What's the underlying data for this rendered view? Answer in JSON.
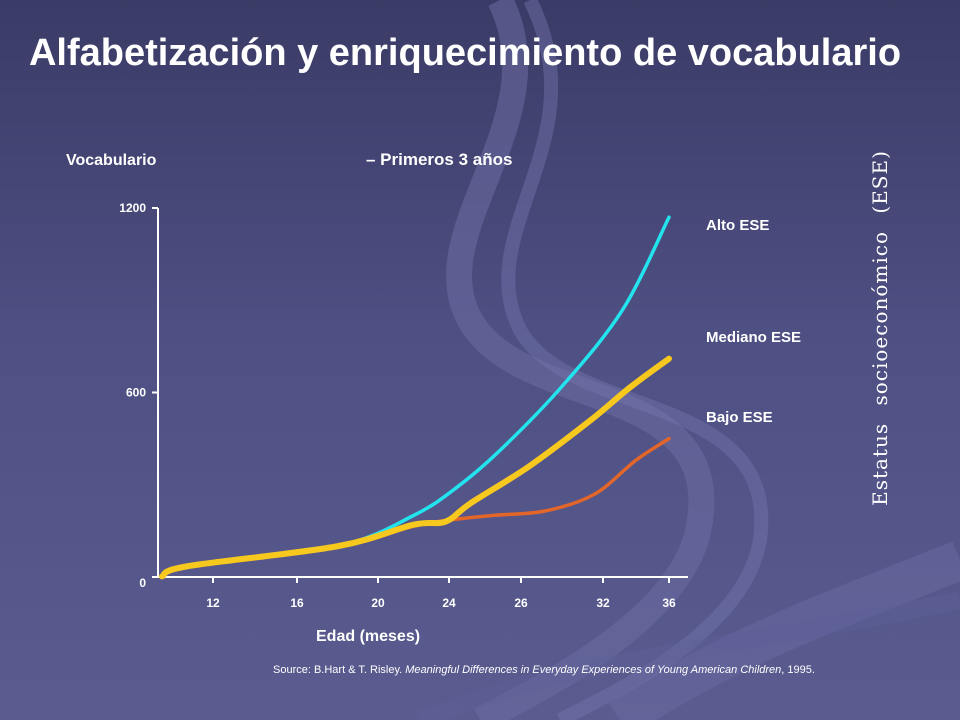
{
  "page": {
    "title": "Alfabetización y enriquecimiento de vocabulario",
    "side_label": "Estatus socioeconómico (ESE)",
    "source_prefix": "Source: B.Hart & T. Risley. ",
    "source_title": "Meaningful Differences in Everyday Experiences of Young American Children",
    "source_suffix": ", 1995."
  },
  "colors": {
    "background": "#4e4f82",
    "alto": "#22e3ee",
    "mediano": "#f7c81e",
    "bajo": "#e2662a"
  },
  "chart_data": {
    "type": "line",
    "title": "",
    "subtitle": "– Primeros  3  años",
    "xlabel": "Edad (meses)",
    "ylabel": "Vocabulario",
    "ylim": [
      0,
      1200
    ],
    "yticks": [
      {
        "value": 0,
        "label": "0"
      },
      {
        "value": 600,
        "label": "600"
      },
      {
        "value": 1200,
        "label": "1200"
      }
    ],
    "xticks": [
      "12",
      "16",
      "20",
      "24",
      "26",
      "32",
      "36"
    ],
    "grid": false,
    "legend": "right, labels beside line ends",
    "series": [
      {
        "name": "Alto ESE",
        "color": "#22e3ee",
        "points": [
          [
            0,
            2
          ],
          [
            0.5,
            35
          ],
          [
            1.5,
            100
          ],
          [
            2.5,
            200
          ],
          [
            3.1,
            290
          ],
          [
            3.7,
            410
          ],
          [
            4.5,
            620
          ],
          [
            5.3,
            870
          ],
          [
            6.0,
            1170
          ]
        ]
      },
      {
        "name": "Mediano ESE",
        "color": "#f7c81e",
        "points": [
          [
            0,
            2
          ],
          [
            0.5,
            35
          ],
          [
            1.5,
            100
          ],
          [
            2.5,
            170
          ],
          [
            2.95,
            180
          ],
          [
            3.3,
            240
          ],
          [
            4.1,
            360
          ],
          [
            4.85,
            510
          ],
          [
            5.4,
            615
          ],
          [
            6.1,
            710
          ]
        ]
      },
      {
        "name": "Bajo ESE",
        "color": "#e2662a",
        "points": [
          [
            0,
            2
          ],
          [
            0.5,
            35
          ],
          [
            1.5,
            100
          ],
          [
            2.5,
            165
          ],
          [
            3.0,
            185
          ],
          [
            3.6,
            200
          ],
          [
            4.3,
            215
          ],
          [
            4.9,
            270
          ],
          [
            5.5,
            380
          ],
          [
            6.0,
            450
          ]
        ]
      }
    ]
  }
}
